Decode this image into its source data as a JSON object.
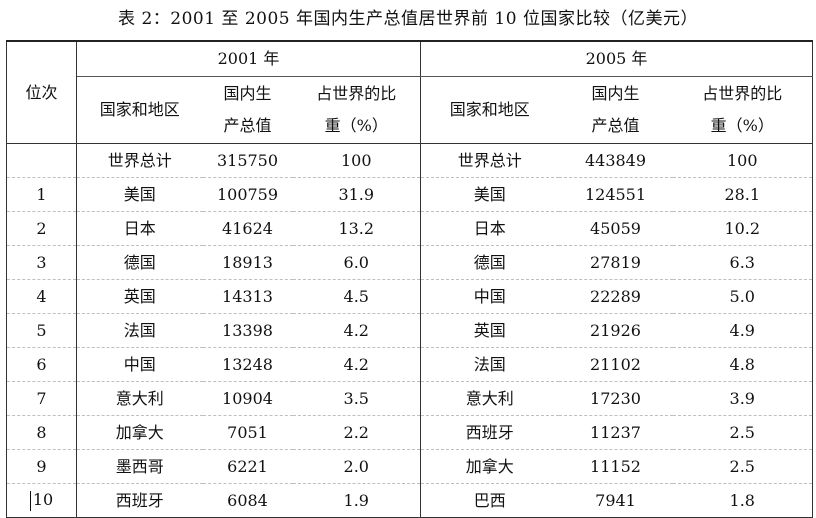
{
  "caption": "表 2：2001 至 2005 年国内生产总值居世界前 10 位国家比较（亿美元）",
  "header": {
    "rank": "位次",
    "year_a": "2001 年",
    "year_b": "2005 年",
    "country": "国家和地区",
    "gdp_line1": "国内生",
    "gdp_line2": "产总值",
    "share_line1": "占世界的比",
    "share_line2": "重（%）"
  },
  "rows": [
    {
      "rank": "",
      "c1": "世界总计",
      "g1": "315750",
      "s1": "100",
      "c2": "世界总计",
      "g2": "443849",
      "s2": "100"
    },
    {
      "rank": "1",
      "c1": "美国",
      "g1": "100759",
      "s1": "31.9",
      "c2": "美国",
      "g2": "124551",
      "s2": "28.1"
    },
    {
      "rank": "2",
      "c1": "日本",
      "g1": "41624",
      "s1": "13.2",
      "c2": "日本",
      "g2": "45059",
      "s2": "10.2"
    },
    {
      "rank": "3",
      "c1": "德国",
      "g1": "18913",
      "s1": "6.0",
      "c2": "德国",
      "g2": "27819",
      "s2": "6.3"
    },
    {
      "rank": "4",
      "c1": "英国",
      "g1": "14313",
      "s1": "4.5",
      "c2": "中国",
      "g2": "22289",
      "s2": "5.0"
    },
    {
      "rank": "5",
      "c1": "法国",
      "g1": "13398",
      "s1": "4.2",
      "c2": "英国",
      "g2": "21926",
      "s2": "4.9"
    },
    {
      "rank": "6",
      "c1": "中国",
      "g1": "13248",
      "s1": "4.2",
      "c2": "法国",
      "g2": "21102",
      "s2": "4.8"
    },
    {
      "rank": "7",
      "c1": "意大利",
      "g1": "10904",
      "s1": "3.5",
      "c2": "意大利",
      "g2": "17230",
      "s2": "3.9"
    },
    {
      "rank": "8",
      "c1": "加拿大",
      "g1": "7051",
      "s1": "2.2",
      "c2": "西班牙",
      "g2": "11237",
      "s2": "2.5"
    },
    {
      "rank": "9",
      "c1": "墨西哥",
      "g1": "6221",
      "s1": "2.0",
      "c2": "加拿大",
      "g2": "11152",
      "s2": "2.5"
    },
    {
      "rank": "10",
      "c1": "西班牙",
      "g1": "6084",
      "s1": "1.9",
      "c2": "巴西",
      "g2": "7941",
      "s2": "1.8"
    }
  ]
}
